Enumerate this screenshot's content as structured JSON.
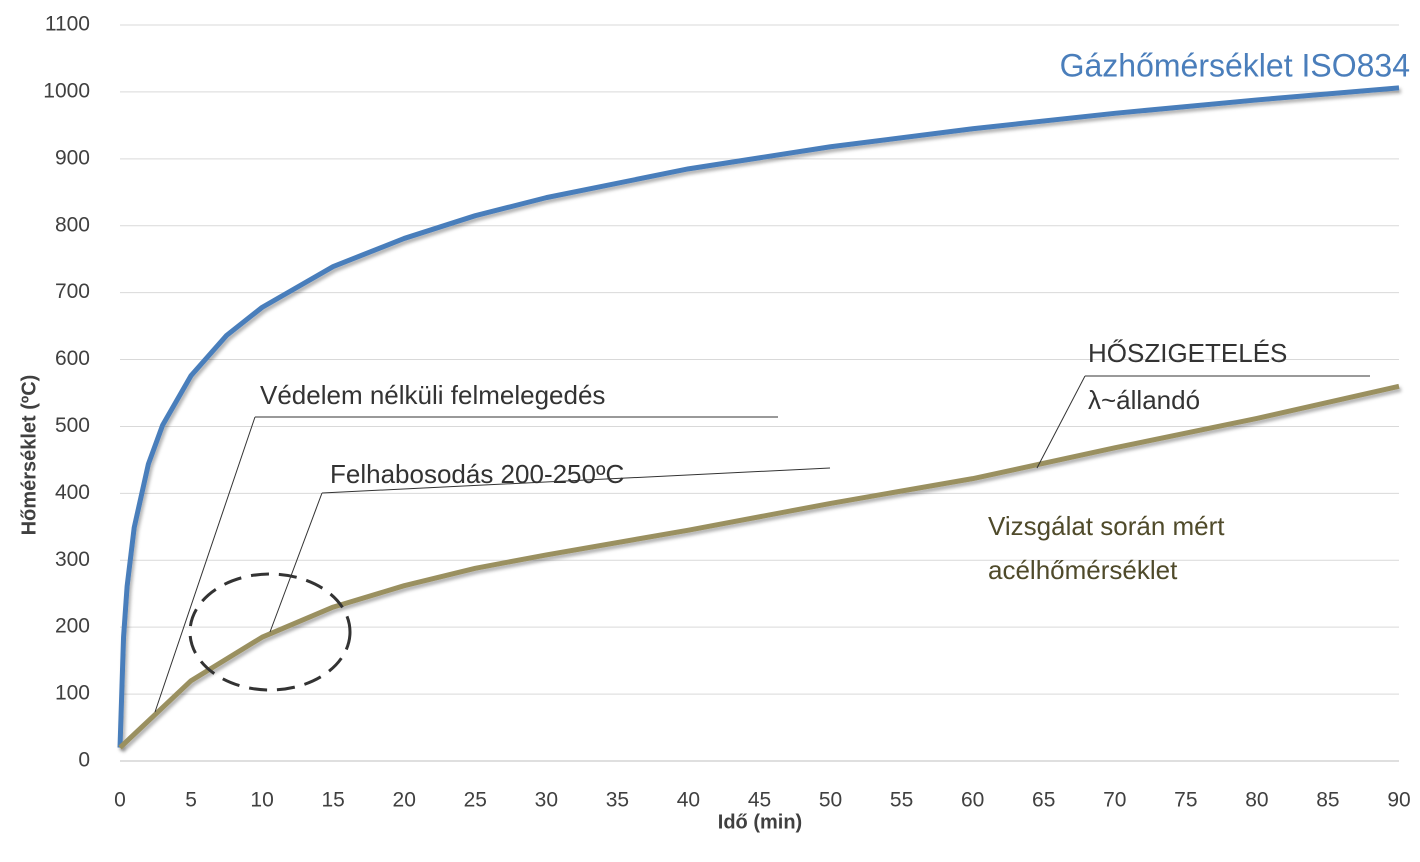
{
  "chart_data": {
    "type": "line",
    "xlabel": "Idő (min)",
    "ylabel": "Hőmérséklet (ºC)",
    "xlim": [
      0,
      90
    ],
    "xticks": [
      0,
      5,
      10,
      15,
      20,
      25,
      30,
      35,
      40,
      45,
      50,
      55,
      60,
      65,
      70,
      75,
      80,
      85,
      90
    ],
    "ylim": [
      0,
      1100
    ],
    "yticks": [
      0,
      100,
      200,
      300,
      400,
      500,
      600,
      700,
      800,
      900,
      1000,
      1100
    ],
    "grid": true,
    "series": [
      {
        "name": "Gázhőmérséklet ISO834",
        "color": "#4a7ebb",
        "x": [
          0,
          0.25,
          0.5,
          1,
          2,
          3,
          5,
          7.5,
          10,
          15,
          20,
          25,
          30,
          40,
          50,
          60,
          70,
          80,
          90
        ],
        "values": [
          20,
          185,
          261,
          349,
          444,
          502,
          576,
          636,
          678,
          739,
          781,
          815,
          842,
          885,
          918,
          945,
          968,
          988,
          1006
        ]
      },
      {
        "name": "Vizsgálat során mért acélhőmérséklet",
        "color": "#9a9060",
        "x": [
          0,
          2.5,
          5,
          10,
          15,
          20,
          25,
          30,
          40,
          50,
          60,
          70,
          80,
          90
        ],
        "values": [
          20,
          70,
          120,
          185,
          230,
          262,
          288,
          308,
          345,
          385,
          422,
          468,
          512,
          560
        ]
      }
    ],
    "annotations": [
      "Gázhőmérséklet ISO834",
      "Védelem nélküli felmelegedés",
      "Felhabosodás 200-250ºC",
      "HŐSZIGETELÉS",
      "λ~állandó",
      "Vizsgálat során mért",
      "acélhőmérséklet"
    ]
  }
}
